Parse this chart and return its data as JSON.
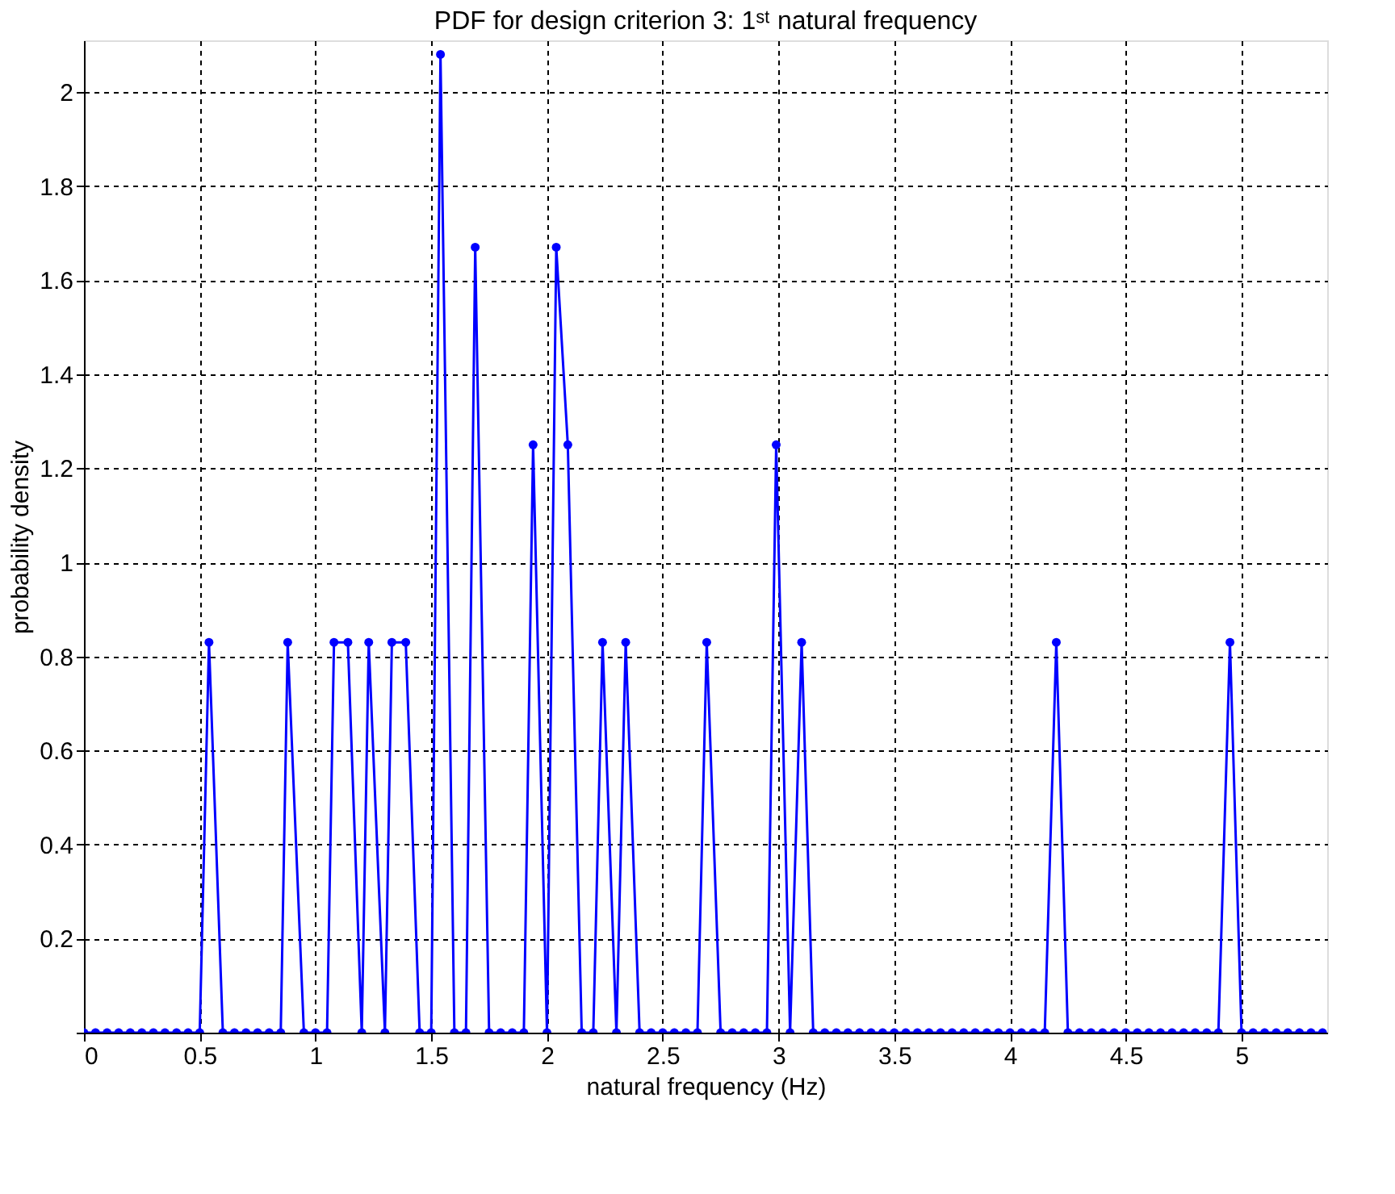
{
  "chart_data": {
    "type": "line",
    "title": "PDF for design criterion 3: 1ˢᵗ natural frequency",
    "xlabel": "natural frequency (Hz)",
    "ylabel": "probability density",
    "x": [
      0,
      0.05,
      0.1,
      0.15,
      0.2,
      0.25,
      0.3,
      0.35,
      0.4,
      0.45,
      0.5,
      0.54,
      0.6,
      0.65,
      0.7,
      0.75,
      0.8,
      0.85,
      0.88,
      0.95,
      1.0,
      1.05,
      1.08,
      1.14,
      1.2,
      1.23,
      1.3,
      1.33,
      1.39,
      1.45,
      1.5,
      1.54,
      1.6,
      1.65,
      1.69,
      1.75,
      1.8,
      1.85,
      1.9,
      1.94,
      2.0,
      2.04,
      2.09,
      2.15,
      2.2,
      2.24,
      2.3,
      2.34,
      2.4,
      2.45,
      2.5,
      2.55,
      2.6,
      2.65,
      2.69,
      2.75,
      2.8,
      2.85,
      2.9,
      2.95,
      2.99,
      3.05,
      3.1,
      3.15,
      3.2,
      3.25,
      3.3,
      3.35,
      3.4,
      3.45,
      3.5,
      3.55,
      3.6,
      3.65,
      3.7,
      3.75,
      3.8,
      3.85,
      3.9,
      3.95,
      4.0,
      4.05,
      4.1,
      4.15,
      4.2,
      4.25,
      4.3,
      4.35,
      4.4,
      4.45,
      4.5,
      4.55,
      4.6,
      4.65,
      4.7,
      4.75,
      4.8,
      4.85,
      4.9,
      4.95,
      5.0,
      5.05,
      5.1,
      5.15,
      5.2,
      5.25,
      5.3,
      5.35
    ],
    "series": [
      {
        "color": "#0000ff",
        "values": [
          0,
          0,
          0,
          0,
          0,
          0,
          0,
          0,
          0,
          0,
          0,
          0.83,
          0,
          0,
          0,
          0,
          0,
          0,
          0.83,
          0,
          0,
          0,
          0.83,
          0.83,
          0,
          0.83,
          0,
          0.83,
          0.83,
          0,
          0,
          2.08,
          0,
          0,
          1.67,
          0,
          0,
          0,
          0,
          1.25,
          0,
          1.67,
          1.25,
          0,
          0,
          0.83,
          0,
          0.83,
          0,
          0,
          0,
          0,
          0,
          0,
          0.83,
          0,
          0,
          0,
          0,
          0,
          1.25,
          0,
          0.83,
          0,
          0,
          0,
          0,
          0,
          0,
          0,
          0,
          0,
          0,
          0,
          0,
          0,
          0,
          0,
          0,
          0,
          0,
          0,
          0,
          0,
          0.83,
          0,
          0,
          0,
          0,
          0,
          0,
          0,
          0,
          0,
          0,
          0,
          0,
          0,
          0,
          0.83,
          0,
          0,
          0,
          0,
          0,
          0,
          0,
          0
        ]
      }
    ],
    "xlim": [
      0,
      5.37
    ],
    "ylim": [
      0,
      2.11
    ],
    "xticks": [
      0,
      0.5,
      1,
      1.5,
      2,
      2.5,
      3,
      3.5,
      4,
      4.5,
      5
    ],
    "yticks": [
      {
        "value": 0,
        "label": null
      },
      0.2,
      0.4,
      0.6,
      0.8,
      1,
      1.2,
      1.4,
      1.6,
      1.8,
      2
    ],
    "grid": true,
    "legend": false,
    "marker": "circle",
    "line_style": "solid"
  }
}
